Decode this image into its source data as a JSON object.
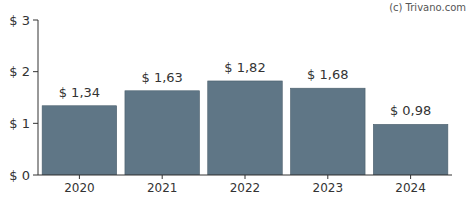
{
  "chart_data": {
    "type": "bar",
    "categories": [
      "2020",
      "2021",
      "2022",
      "2023",
      "2024"
    ],
    "values": [
      1.34,
      1.63,
      1.82,
      1.68,
      0.98
    ],
    "value_labels": [
      "$ 1,34",
      "$ 1,63",
      "$ 1,82",
      "$ 1,68",
      "$ 0,98"
    ],
    "color": "#5f7686",
    "ylim": [
      0,
      3
    ],
    "yticks": [
      {
        "value": 0,
        "label": "$ 0"
      },
      {
        "value": 1,
        "label": "$ 1"
      },
      {
        "value": 2,
        "label": "$ 2"
      },
      {
        "value": 3,
        "label": "$ 3"
      }
    ],
    "grid": false,
    "data_labels": true,
    "annotations": [
      "(c) Trivano.com"
    ]
  }
}
